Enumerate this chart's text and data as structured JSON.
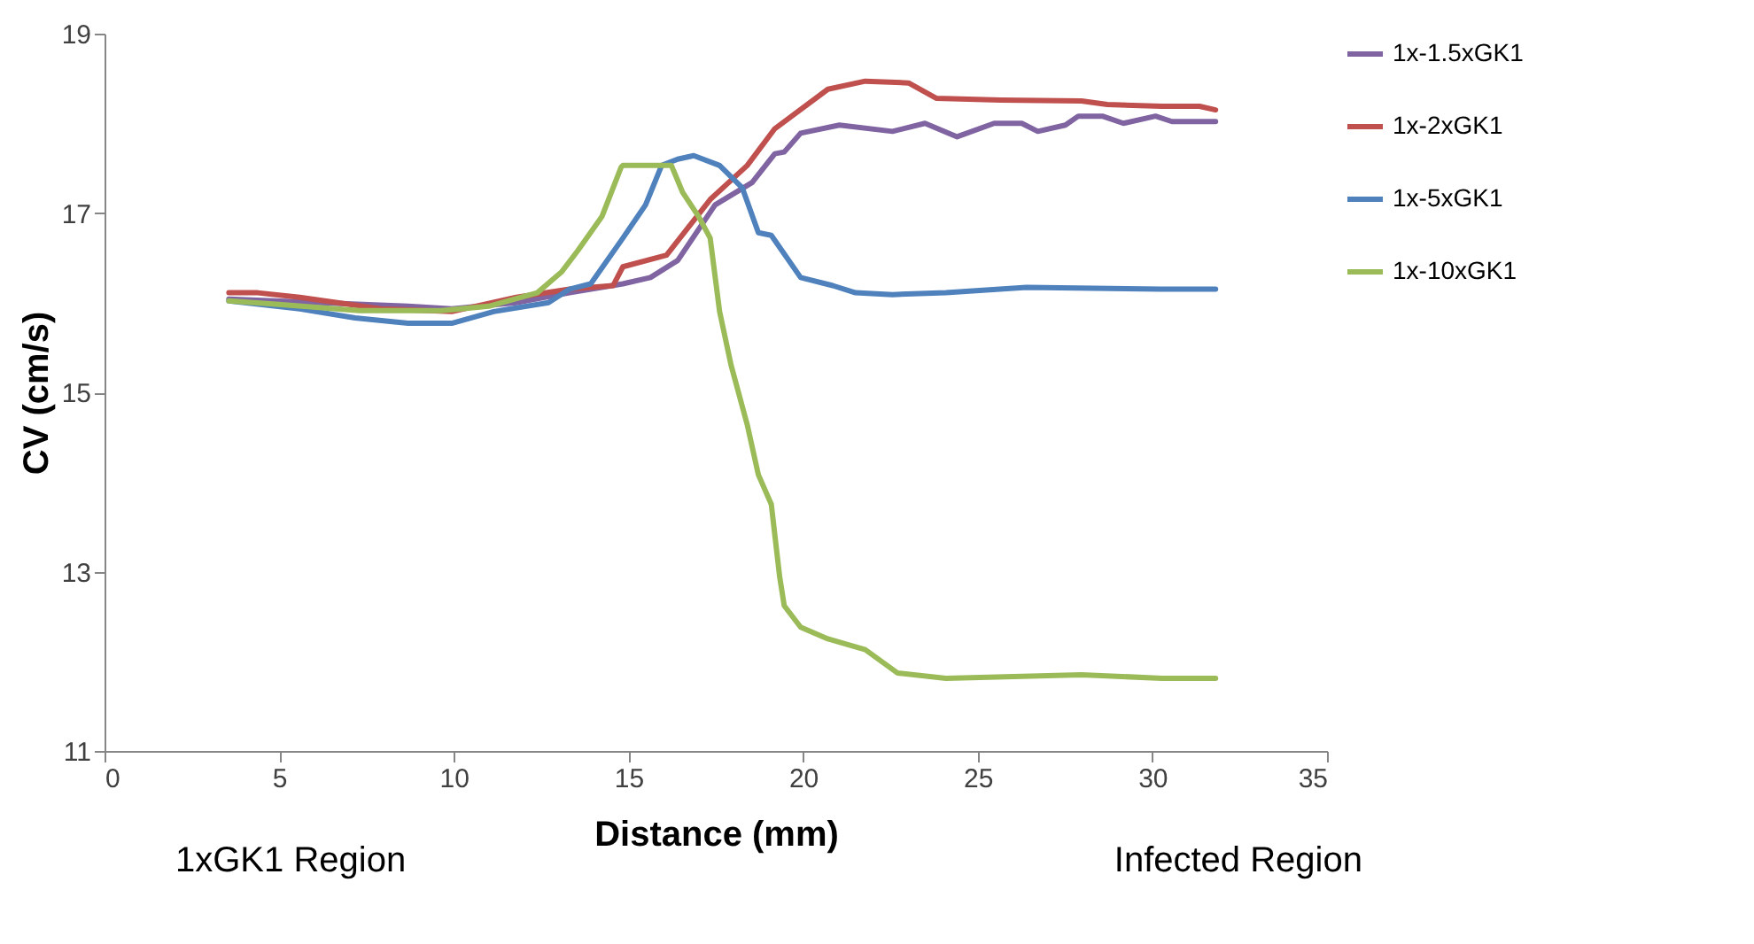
{
  "chart_data": {
    "type": "line",
    "xlabel": "Distance (mm)",
    "ylabel": "CV (cm/s)",
    "xlim": [
      0,
      35
    ],
    "xticks": [
      0,
      5,
      10,
      15,
      20,
      25,
      30,
      35
    ],
    "ylim": [
      11,
      19
    ],
    "yticks": [
      11,
      13,
      15,
      17,
      19
    ],
    "grid": false,
    "legend": "right",
    "marker": "none",
    "line_style": "solid",
    "annotations": [
      "1xGK1 Region",
      "Infected Region"
    ],
    "series": [
      {
        "name": "1x-1.5xGK1",
        "color": "#8064a2",
        "x": [
          3.56,
          8.69,
          9.94,
          11.79,
          13.31,
          14.84,
          15.63,
          16.41,
          17.48,
          18.54,
          19.19,
          19.46,
          19.93,
          21.04,
          22.56,
          23.49,
          24.41,
          25.47,
          26.26,
          26.72,
          27.51,
          27.88,
          28.57,
          29.17,
          30.09,
          30.56,
          31.81
        ],
        "values": [
          16.04,
          15.96,
          15.93,
          16.0,
          16.11,
          16.21,
          16.28,
          16.47,
          17.09,
          17.34,
          17.66,
          17.68,
          17.89,
          17.98,
          17.91,
          18.0,
          17.85,
          18.0,
          18.0,
          17.91,
          17.98,
          18.08,
          18.08,
          18.0,
          18.08,
          18.02,
          18.02
        ]
      },
      {
        "name": "1x-2xGK1",
        "color": "#c0504d",
        "x": [
          3.56,
          4.39,
          5.59,
          7.91,
          9.94,
          11.79,
          13.31,
          14.56,
          14.84,
          16.09,
          17.34,
          18.4,
          19.19,
          20.71,
          21.78,
          23.02,
          23.81,
          25.66,
          27.97,
          28.71,
          30.28,
          31.35,
          31.81
        ],
        "values": [
          16.11,
          16.11,
          16.06,
          15.93,
          15.9,
          16.06,
          16.15,
          16.19,
          16.4,
          16.53,
          17.15,
          17.53,
          17.94,
          18.38,
          18.47,
          18.45,
          18.28,
          18.26,
          18.25,
          18.21,
          18.19,
          18.19,
          18.15
        ]
      },
      {
        "name": "1x-5xGK1",
        "color": "#4f81bd",
        "x": [
          3.56,
          5.59,
          7.17,
          8.69,
          9.94,
          11.14,
          12.71,
          13.31,
          13.92,
          14.84,
          15.49,
          15.95,
          16.41,
          16.87,
          17.61,
          18.26,
          18.72,
          19.09,
          19.93,
          20.85,
          21.5,
          22.56,
          24.09,
          26.4,
          30.28,
          31.81
        ],
        "values": [
          16.02,
          15.93,
          15.83,
          15.77,
          15.77,
          15.9,
          16.0,
          16.15,
          16.21,
          16.72,
          17.09,
          17.53,
          17.6,
          17.64,
          17.53,
          17.28,
          16.78,
          16.75,
          16.28,
          16.19,
          16.11,
          16.09,
          16.11,
          16.17,
          16.15,
          16.15
        ]
      },
      {
        "name": "1x-10xGK1",
        "color": "#9bbb59",
        "x": [
          3.56,
          4.99,
          7.3,
          9.62,
          11.0,
          12.39,
          13.08,
          13.55,
          14.24,
          14.79,
          14.84,
          16.23,
          16.55,
          17.01,
          17.34,
          17.61,
          17.94,
          18.4,
          18.72,
          19.09,
          19.33,
          19.46,
          19.93,
          20.71,
          21.78,
          22.7,
          24.09,
          27.97,
          30.28,
          31.81
        ],
        "values": [
          16.02,
          15.98,
          15.91,
          15.91,
          15.96,
          16.11,
          16.34,
          16.58,
          16.96,
          17.51,
          17.53,
          17.53,
          17.23,
          16.96,
          16.72,
          15.9,
          15.3,
          14.64,
          14.08,
          13.75,
          12.94,
          12.62,
          12.38,
          12.25,
          12.13,
          11.87,
          11.81,
          11.85,
          11.81,
          11.81
        ]
      }
    ]
  }
}
